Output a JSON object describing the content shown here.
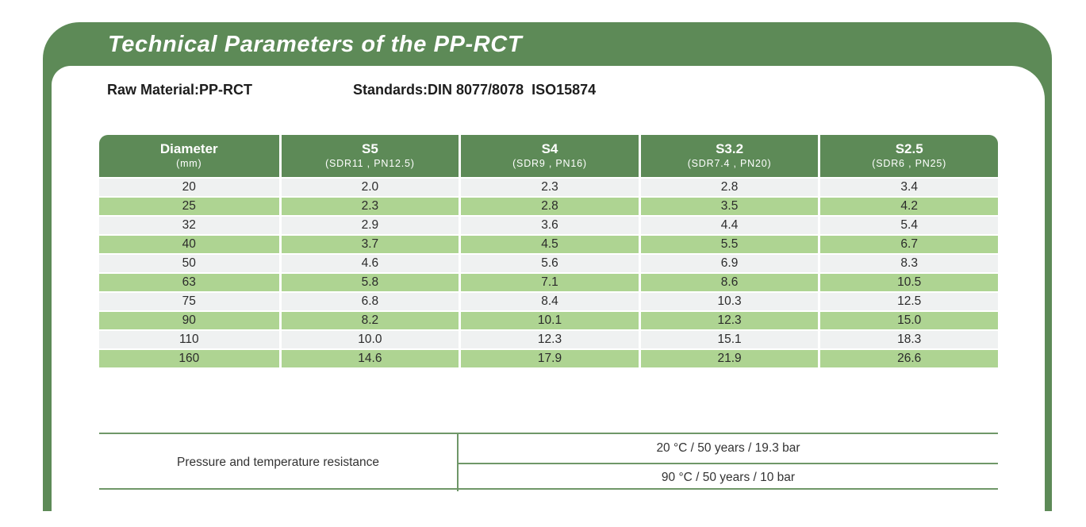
{
  "page": {
    "title": "Technical Parameters of the PP-RCT",
    "raw_material": "Raw Material:PP-RCT",
    "standards": "Standards:DIN 8077/8078  ISO15874"
  },
  "colors": {
    "frame_green": "#5d8a57",
    "row_green": "#aed492",
    "row_gray": "#eff1f1",
    "line_green": "#6f9768",
    "title_text": "#ffffff"
  },
  "main_table": {
    "columns": [
      {
        "label": "Diameter",
        "sub": "(mm)"
      },
      {
        "label": "S5",
        "sub": "(SDR11 , PN12.5)"
      },
      {
        "label": "S4",
        "sub": "(SDR9 , PN16)"
      },
      {
        "label": "S3.2",
        "sub": "(SDR7.4 , PN20)"
      },
      {
        "label": "S2.5",
        "sub": "(SDR6 , PN25)"
      }
    ],
    "rows": [
      [
        "20",
        "2.0",
        "2.3",
        "2.8",
        "3.4"
      ],
      [
        "25",
        "2.3",
        "2.8",
        "3.5",
        "4.2"
      ],
      [
        "32",
        "2.9",
        "3.6",
        "4.4",
        "5.4"
      ],
      [
        "40",
        "3.7",
        "4.5",
        "5.5",
        "6.7"
      ],
      [
        "50",
        "4.6",
        "5.6",
        "6.9",
        "8.3"
      ],
      [
        "63",
        "5.8",
        "7.1",
        "8.6",
        "10.5"
      ],
      [
        "75",
        "6.8",
        "8.4",
        "10.3",
        "12.5"
      ],
      [
        "90",
        "8.2",
        "10.1",
        "12.3",
        "15.0"
      ],
      [
        "110",
        "10.0",
        "12.3",
        "15.1",
        "18.3"
      ],
      [
        "160",
        "14.6",
        "17.9",
        "21.9",
        "26.6"
      ]
    ]
  },
  "resistance_table": {
    "row_label": "Pressure and temperature resistance",
    "values": [
      "20 °C / 50 years / 19.3 bar",
      "90 °C / 50 years / 10 bar"
    ]
  }
}
